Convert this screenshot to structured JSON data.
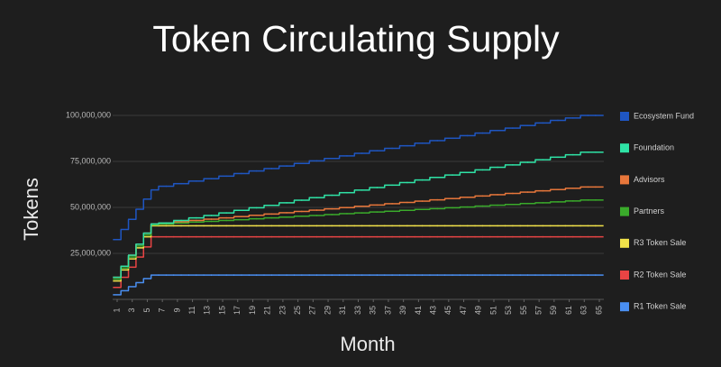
{
  "chart_data": {
    "type": "step",
    "title": "Token Circulating Supply",
    "x_label": "Month",
    "y_label": "Tokens",
    "x": [
      1,
      2,
      3,
      4,
      5,
      6,
      7,
      8,
      9,
      10,
      11,
      12,
      13,
      14,
      15,
      16,
      17,
      18,
      19,
      20,
      21,
      22,
      23,
      24,
      25,
      26,
      27,
      28,
      29,
      30,
      31,
      32,
      33,
      34,
      35,
      36,
      37,
      38,
      39,
      40,
      41,
      42,
      43,
      44,
      45,
      46,
      47,
      48,
      49,
      50,
      51,
      52,
      53,
      54,
      55,
      56,
      57,
      58,
      59,
      60,
      61,
      62,
      63,
      64,
      65
    ],
    "xlim": [
      1,
      65
    ],
    "xticks": [
      1,
      3,
      5,
      7,
      9,
      11,
      13,
      15,
      17,
      19,
      21,
      23,
      25,
      27,
      29,
      31,
      33,
      35,
      37,
      39,
      41,
      43,
      45,
      47,
      49,
      51,
      53,
      55,
      57,
      59,
      61,
      63,
      65
    ],
    "ylim": [
      0,
      100000000
    ],
    "yticks": [
      {
        "value": 25000000,
        "label": "25,000,000"
      },
      {
        "value": 50000000,
        "label": "50,000,000"
      },
      {
        "value": 75000000,
        "label": "75,000,000"
      },
      {
        "value": 100000000,
        "label": "100,000,000"
      }
    ],
    "grid": true,
    "legend": "right",
    "series": [
      {
        "name": "Ecosystem Fund",
        "color": "#1f56c2",
        "values": [
          32500000,
          38000000,
          43500000,
          49000000,
          54500000,
          59500000,
          61500000,
          61500000,
          62900000,
          62900000,
          64300000,
          64300000,
          65600000,
          65600000,
          67000000,
          67000000,
          68400000,
          68400000,
          69800000,
          69800000,
          71100000,
          71100000,
          72500000,
          72500000,
          73900000,
          73900000,
          75300000,
          75300000,
          76600000,
          76600000,
          78000000,
          78000000,
          79400000,
          79400000,
          80800000,
          80800000,
          82100000,
          82100000,
          83500000,
          83500000,
          84900000,
          84900000,
          86300000,
          86300000,
          87600000,
          87600000,
          89000000,
          89000000,
          90400000,
          90400000,
          91800000,
          91800000,
          93100000,
          93100000,
          94500000,
          94500000,
          95900000,
          95900000,
          97300000,
          97300000,
          98600000,
          98600000,
          100000000,
          100000000,
          100000000
        ]
      },
      {
        "name": "Foundation",
        "color": "#2fe3a6",
        "values": [
          12000000,
          18000000,
          24000000,
          30000000,
          36000000,
          41000000,
          41500000,
          41500000,
          42900000,
          42900000,
          44300000,
          44300000,
          45600000,
          45600000,
          47000000,
          47000000,
          48400000,
          48400000,
          49800000,
          49800000,
          51100000,
          51100000,
          52500000,
          52500000,
          53900000,
          53900000,
          55300000,
          55300000,
          56600000,
          56600000,
          58000000,
          58000000,
          59400000,
          59400000,
          60800000,
          60800000,
          62100000,
          62100000,
          63500000,
          63500000,
          64900000,
          64900000,
          66300000,
          66300000,
          67600000,
          67600000,
          69000000,
          69000000,
          70400000,
          70400000,
          71800000,
          71800000,
          73100000,
          73100000,
          74500000,
          74500000,
          75900000,
          75900000,
          77300000,
          77300000,
          78600000,
          78600000,
          80000000,
          80000000,
          80000000
        ]
      },
      {
        "name": "Advisors",
        "color": "#e8773b",
        "values": [
          12000000,
          18000000,
          24000000,
          30000000,
          36000000,
          41000000,
          41500000,
          41500000,
          42200000,
          42200000,
          42900000,
          42900000,
          43600000,
          43600000,
          44300000,
          44300000,
          45000000,
          45000000,
          45700000,
          45700000,
          46400000,
          46400000,
          47100000,
          47100000,
          47800000,
          47800000,
          48500000,
          48500000,
          49200000,
          49200000,
          49900000,
          49900000,
          50600000,
          50600000,
          51300000,
          51300000,
          52000000,
          52000000,
          52700000,
          52700000,
          53400000,
          53400000,
          54100000,
          54100000,
          54800000,
          54800000,
          55500000,
          55500000,
          56200000,
          56200000,
          56900000,
          56900000,
          57600000,
          57600000,
          58300000,
          58300000,
          59000000,
          59000000,
          59700000,
          59700000,
          60400000,
          60400000,
          61100000,
          61100000,
          61100000
        ]
      },
      {
        "name": "Partners",
        "color": "#3aab2b",
        "values": [
          11000000,
          17000000,
          23000000,
          29000000,
          35000000,
          40500000,
          41000000,
          41000000,
          41500000,
          41500000,
          42000000,
          42000000,
          42400000,
          42400000,
          42900000,
          42900000,
          43300000,
          43300000,
          43800000,
          43800000,
          44300000,
          44300000,
          44700000,
          44700000,
          45200000,
          45200000,
          45600000,
          45600000,
          46100000,
          46100000,
          46600000,
          46600000,
          47000000,
          47000000,
          47500000,
          47500000,
          47900000,
          47900000,
          48400000,
          48400000,
          48900000,
          48900000,
          49300000,
          49300000,
          49800000,
          49800000,
          50200000,
          50200000,
          50700000,
          50700000,
          51200000,
          51200000,
          51600000,
          51600000,
          52100000,
          52100000,
          52500000,
          52500000,
          53000000,
          53000000,
          53500000,
          53500000,
          54000000,
          54000000,
          54000000
        ]
      },
      {
        "name": "R3 Token Sale",
        "color": "#f2e34a",
        "values": [
          10000000,
          16000000,
          22000000,
          28000000,
          34000000,
          40000000,
          40000000,
          40000000,
          40000000,
          40000000,
          40000000,
          40000000,
          40000000,
          40000000,
          40000000,
          40000000,
          40000000,
          40000000,
          40000000,
          40000000,
          40000000,
          40000000,
          40000000,
          40000000,
          40000000,
          40000000,
          40000000,
          40000000,
          40000000,
          40000000,
          40000000,
          40000000,
          40000000,
          40000000,
          40000000,
          40000000,
          40000000,
          40000000,
          40000000,
          40000000,
          40000000,
          40000000,
          40000000,
          40000000,
          40000000,
          40000000,
          40000000,
          40000000,
          40000000,
          40000000,
          40000000,
          40000000,
          40000000,
          40000000,
          40000000,
          40000000,
          40000000,
          40000000,
          40000000,
          40000000,
          40000000,
          40000000,
          40000000,
          40000000,
          40000000
        ]
      },
      {
        "name": "R2 Token Sale",
        "color": "#e84444",
        "values": [
          6500000,
          12000000,
          17500000,
          23000000,
          28500000,
          34000000,
          34000000,
          34000000,
          34000000,
          34000000,
          34000000,
          34000000,
          34000000,
          34000000,
          34000000,
          34000000,
          34000000,
          34000000,
          34000000,
          34000000,
          34000000,
          34000000,
          34000000,
          34000000,
          34000000,
          34000000,
          34000000,
          34000000,
          34000000,
          34000000,
          34000000,
          34000000,
          34000000,
          34000000,
          34000000,
          34000000,
          34000000,
          34000000,
          34000000,
          34000000,
          34000000,
          34000000,
          34000000,
          34000000,
          34000000,
          34000000,
          34000000,
          34000000,
          34000000,
          34000000,
          34000000,
          34000000,
          34000000,
          34000000,
          34000000,
          34000000,
          34000000,
          34000000,
          34000000,
          34000000,
          34000000,
          34000000,
          34000000,
          34000000,
          34000000
        ]
      },
      {
        "name": "R1 Token Sale",
        "color": "#4a8ff2",
        "values": [
          2500000,
          4700000,
          6900000,
          9100000,
          11300000,
          13200000,
          13200000,
          13200000,
          13200000,
          13200000,
          13200000,
          13200000,
          13200000,
          13200000,
          13200000,
          13200000,
          13200000,
          13200000,
          13200000,
          13200000,
          13200000,
          13200000,
          13200000,
          13200000,
          13200000,
          13200000,
          13200000,
          13200000,
          13200000,
          13200000,
          13200000,
          13200000,
          13200000,
          13200000,
          13200000,
          13200000,
          13200000,
          13200000,
          13200000,
          13200000,
          13200000,
          13200000,
          13200000,
          13200000,
          13200000,
          13200000,
          13200000,
          13200000,
          13200000,
          13200000,
          13200000,
          13200000,
          13200000,
          13200000,
          13200000,
          13200000,
          13200000,
          13200000,
          13200000,
          13200000,
          13200000,
          13200000,
          13200000,
          13200000,
          13200000
        ]
      }
    ]
  }
}
